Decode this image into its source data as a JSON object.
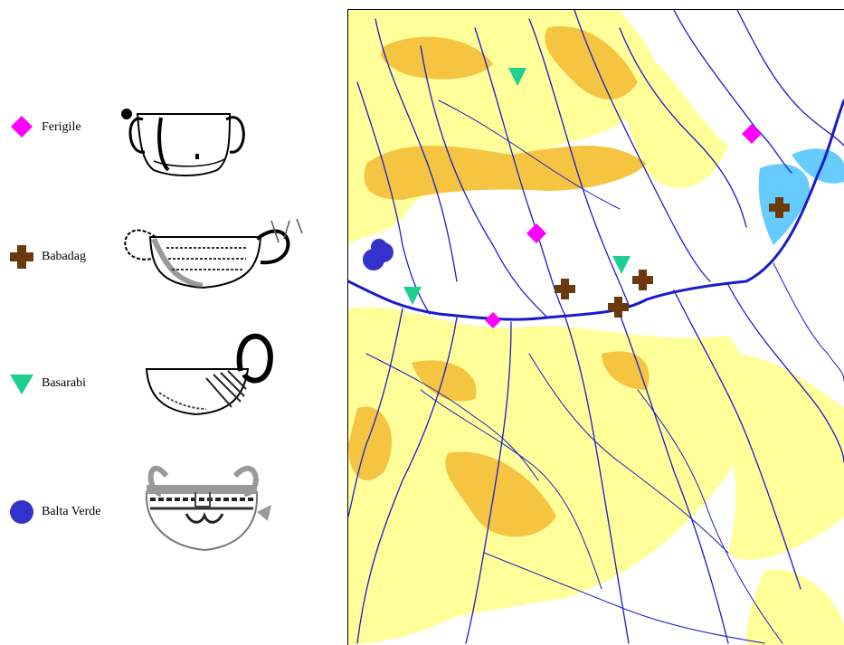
{
  "legend": {
    "items": [
      {
        "name": "Ferigile",
        "symbol": "diamond",
        "color": "#ff00ff"
      },
      {
        "name": "Babadag",
        "symbol": "cross",
        "color": "#6b3a0c"
      },
      {
        "name": "Basarabi",
        "symbol": "triangle-down",
        "color": "#1ecf8f"
      },
      {
        "name": "Balta Verde",
        "symbol": "circle",
        "color": "#3333cc"
      }
    ]
  },
  "map": {
    "colors": {
      "land": "#ffffff",
      "lowland_relief": "#ffff99",
      "highland_relief": "#f5c542",
      "rivers": "#1a1acc",
      "lakes": "#66ccff"
    },
    "markers": [
      {
        "culture": "Basarabi",
        "symbol": "triangle-down"
      },
      {
        "culture": "Ferigile",
        "symbol": "diamond"
      },
      {
        "culture": "Babadag",
        "symbol": "cross"
      },
      {
        "culture": "Ferigile",
        "symbol": "diamond"
      },
      {
        "culture": "Balta Verde",
        "symbol": "circle"
      },
      {
        "culture": "Basarabi",
        "symbol": "triangle-down"
      },
      {
        "culture": "Babadag",
        "symbol": "cross"
      },
      {
        "culture": "Basarabi",
        "symbol": "triangle-down"
      },
      {
        "culture": "Babadag",
        "symbol": "cross"
      },
      {
        "culture": "Ferigile",
        "symbol": "diamond"
      },
      {
        "culture": "Babadag",
        "symbol": "cross"
      }
    ]
  }
}
